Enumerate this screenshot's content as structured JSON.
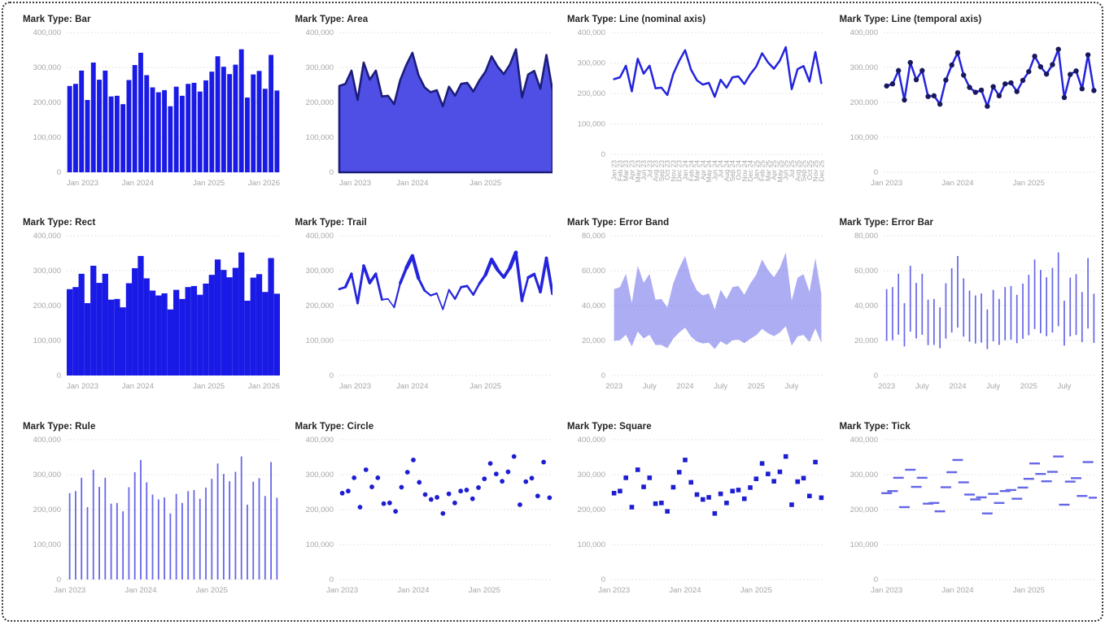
{
  "colors": {
    "bar": "#1a1ae6",
    "line": "#2424dc",
    "point": "#18185e",
    "mark_point": "#1d1dd2",
    "area_fill": "#2828df",
    "area_fill_opacity": 0.82,
    "area_stroke": "#1c1c7c",
    "band_fill": "#2828df",
    "band_opacity": 0.38,
    "thin": "#6666e8",
    "grid": "#d7d7d7",
    "axis_label": "#a6a6a6",
    "title": "#232323"
  },
  "chart_data": {
    "type": "multiples",
    "description": "Twelve small-multiple panels of the same monthly series rendered with different mark types",
    "categories": [
      "Jan 23",
      "Feb 23",
      "Mar 23",
      "Apr 23",
      "May 23",
      "Jun 23",
      "Jul 23",
      "Aug 23",
      "Sep 23",
      "Oct 23",
      "Nov 23",
      "Dec 23",
      "Jan 24",
      "Feb 24",
      "Mar 24",
      "Apr 24",
      "May 24",
      "Jun 24",
      "Jul 24",
      "Aug 24",
      "Sep 24",
      "Oct 24",
      "Nov 24",
      "Dec 24",
      "Jan 25",
      "Feb 25",
      "Mar 25",
      "Apr 25",
      "May 25",
      "Jun 25",
      "Jul 25",
      "Aug 25",
      "Sep 25",
      "Oct 25",
      "Nov 25",
      "Dec 25"
    ],
    "values": [
      247000,
      253000,
      291000,
      207000,
      314000,
      265000,
      291000,
      217000,
      219000,
      195000,
      264000,
      307000,
      342000,
      278000,
      243000,
      229000,
      235000,
      189000,
      245000,
      219000,
      253000,
      256000,
      231000,
      263000,
      288000,
      332000,
      302000,
      281000,
      308000,
      352000,
      214000,
      280000,
      290000,
      239000,
      336000,
      234000
    ],
    "error_upper": [
      49400,
      50600,
      58200,
      41400,
      62800,
      53000,
      58200,
      43400,
      43800,
      39000,
      52800,
      61400,
      68400,
      55600,
      48600,
      45800,
      47000,
      37800,
      49000,
      43800,
      50600,
      51200,
      46200,
      52600,
      57600,
      66400,
      60400,
      56200,
      61600,
      70400,
      42800,
      56000,
      58000,
      47800,
      67200,
      46800
    ],
    "error_lower": [
      19800,
      20200,
      23300,
      16600,
      25100,
      21200,
      23300,
      17400,
      17500,
      15600,
      21100,
      24600,
      27400,
      22200,
      19400,
      18300,
      18800,
      15100,
      19600,
      17500,
      20200,
      20500,
      18500,
      21000,
      23000,
      26600,
      24200,
      22500,
      24600,
      28200,
      17100,
      22400,
      23200,
      19100,
      26900,
      18700
    ],
    "y_axes": {
      "y400": {
        "max": 400000,
        "ticks": [
          {
            "v": 0,
            "label": "0"
          },
          {
            "v": 100000,
            "label": "100,000"
          },
          {
            "v": 200000,
            "label": "200,000"
          },
          {
            "v": 300000,
            "label": "300,000"
          },
          {
            "v": 400000,
            "label": "400,000"
          }
        ]
      },
      "y80": {
        "max": 80000,
        "ticks": [
          {
            "v": 0,
            "label": "0"
          },
          {
            "v": 20000,
            "label": "20,000"
          },
          {
            "v": 40000,
            "label": "40,000"
          },
          {
            "v": 60000,
            "label": "60,000"
          },
          {
            "v": 80000,
            "label": "80,000"
          }
        ]
      }
    },
    "x_tick_sets": {
      "bar4": [
        {
          "f": 0,
          "label": "Jan 2023"
        },
        {
          "f": 0.3333,
          "label": "Jan 2024"
        },
        {
          "f": 0.6667,
          "label": "Jan 2025"
        },
        {
          "f": 1,
          "label": "Jan 2026"
        }
      ],
      "edge3": [
        {
          "f": 0,
          "label": "Jan 2023"
        },
        {
          "f": 0.3429,
          "label": "Jan 2024"
        },
        {
          "f": 0.6857,
          "label": "Jan 2025"
        }
      ],
      "point3": [
        {
          "f": 0.0139,
          "label": "Jan 2023"
        },
        {
          "f": 0.3472,
          "label": "Jan 2024"
        },
        {
          "f": 0.6806,
          "label": "Jan 2025"
        }
      ],
      "halfyear": [
        {
          "f": 0.0139,
          "label": "2023"
        },
        {
          "f": 0.1806,
          "label": "July"
        },
        {
          "f": 0.3472,
          "label": "2024"
        },
        {
          "f": 0.5139,
          "label": "July"
        },
        {
          "f": 0.6806,
          "label": "2025"
        },
        {
          "f": 0.8472,
          "label": "July"
        }
      ]
    },
    "panels": [
      {
        "title": "Mark Type: Bar",
        "mark": "bar",
        "x_ticks": "bar4",
        "y_axis": "y400"
      },
      {
        "title": "Mark Type: Area",
        "mark": "area",
        "x_ticks": "edge3",
        "y_axis": "y400"
      },
      {
        "title": "Mark Type: Line (nominal axis)",
        "mark": "line",
        "x_ticks": "nominal",
        "y_axis": "y400"
      },
      {
        "title": "Mark Type: Line (temporal axis)",
        "mark": "line_points",
        "x_ticks": "point3",
        "y_axis": "y400"
      },
      {
        "title": "Mark Type: Rect",
        "mark": "rect",
        "x_ticks": "bar4",
        "y_axis": "y400"
      },
      {
        "title": "Mark Type: Trail",
        "mark": "trail",
        "x_ticks": "edge3",
        "y_axis": "y400"
      },
      {
        "title": "Mark Type: Error Band",
        "mark": "band",
        "x_ticks": "halfyear",
        "y_axis": "y80"
      },
      {
        "title": "Mark Type: Error Bar",
        "mark": "errorbar",
        "x_ticks": "halfyear",
        "y_axis": "y80"
      },
      {
        "title": "Mark Type: Rule",
        "mark": "rule",
        "x_ticks": "point3",
        "y_axis": "y400"
      },
      {
        "title": "Mark Type: Circle",
        "mark": "circle",
        "x_ticks": "point3",
        "y_axis": "y400"
      },
      {
        "title": "Mark Type: Square",
        "mark": "square",
        "x_ticks": "point3",
        "y_axis": "y400"
      },
      {
        "title": "Mark Type: Tick",
        "mark": "tick",
        "x_ticks": "point3",
        "y_axis": "y400"
      }
    ]
  }
}
